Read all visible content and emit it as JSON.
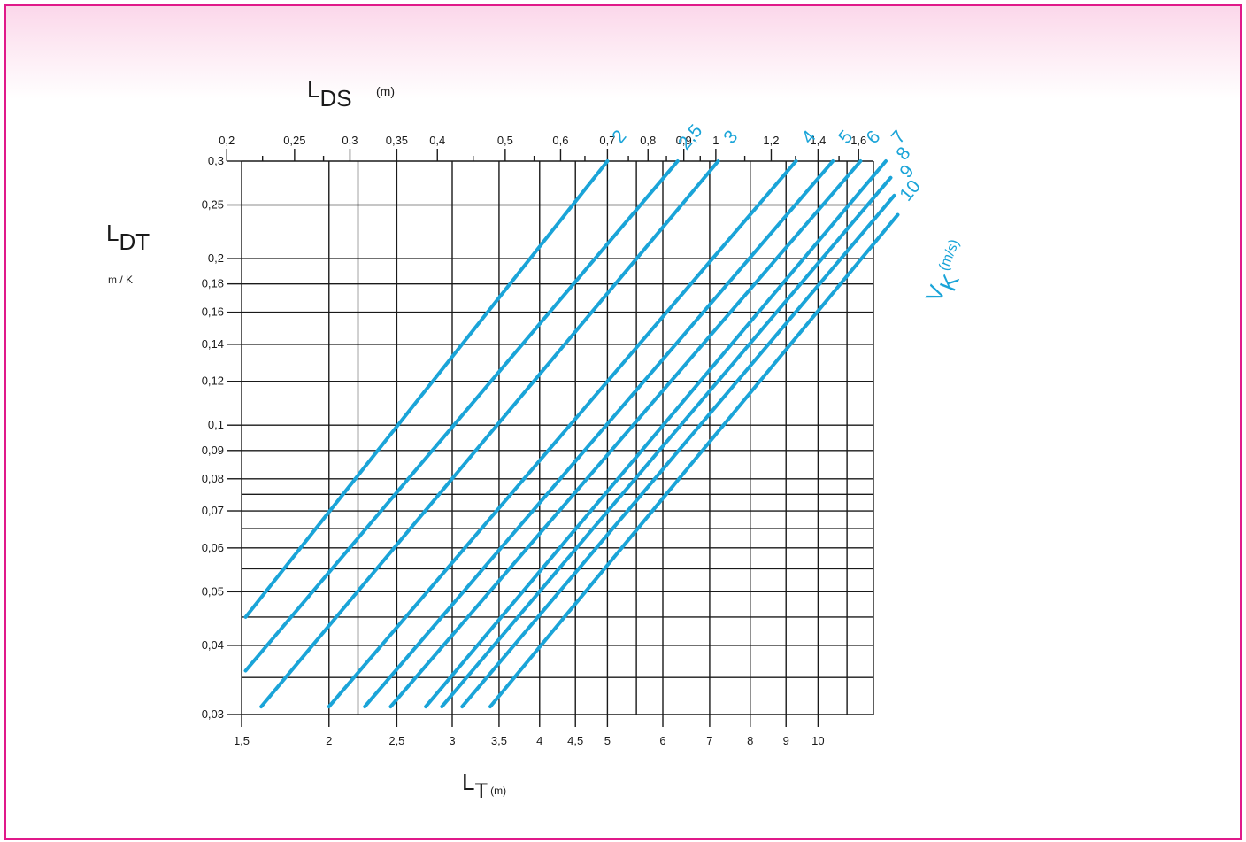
{
  "chart_data": {
    "type": "line",
    "scale": "log-log",
    "grid": true,
    "colors": {
      "frame": "#e0198a",
      "curves": "#1aa4d8",
      "grid": "#1a1a1a"
    },
    "x_axis": {
      "label_main": "L",
      "label_sub": "T",
      "label_unit": "(m)",
      "range": [
        1.5,
        12
      ],
      "tick_values": [
        1.5,
        2,
        2.5,
        3,
        3.5,
        4,
        4.5,
        5,
        6,
        7,
        8,
        9,
        10
      ],
      "tick_labels": [
        "1,5",
        "2",
        "2,5",
        "3",
        "3,5",
        "4",
        "4,5",
        "5",
        "6",
        "7",
        "8",
        "9",
        "10"
      ],
      "extra_gridlines": [
        2.2,
        5.5,
        11
      ]
    },
    "top_axis": {
      "label_main": "L",
      "label_sub": "DS",
      "label_unit": "(m)",
      "tick_values": [
        0.2,
        0.25,
        0.3,
        0.35,
        0.4,
        0.5,
        0.6,
        0.7,
        0.8,
        0.9,
        1,
        1.2,
        1.4,
        1.6
      ],
      "tick_labels": [
        "0,2",
        "0,25",
        "0,3",
        "0,35",
        "0,4",
        "0,5",
        "0,6",
        "0,7",
        "0,8",
        "0,9",
        "1",
        "1,2",
        "1,4",
        "1,6"
      ],
      "minor_values": [
        0.225,
        0.275,
        0.45,
        0.55,
        0.65,
        0.75,
        0.85,
        0.95,
        1.1,
        1.3,
        1.5,
        1.7
      ]
    },
    "y_axis": {
      "label_main": "L",
      "label_sub": "DT",
      "label_unit": "m / K",
      "range": [
        0.03,
        0.3
      ],
      "tick_values": [
        0.03,
        0.04,
        0.05,
        0.06,
        0.07,
        0.08,
        0.09,
        0.1,
        0.12,
        0.14,
        0.16,
        0.18,
        0.2,
        0.25,
        0.3
      ],
      "tick_labels": [
        "0,03",
        "0,04",
        "0,05",
        "0,06",
        "0,07",
        "0,08",
        "0,09",
        "0,1",
        "0,12",
        "0,14",
        "0,16",
        "0,18",
        "0,2",
        "0,25",
        "0,3"
      ],
      "extra_gridlines": [
        0.035,
        0.045,
        0.055,
        0.065,
        0.075
      ]
    },
    "series_label": {
      "main": "V",
      "sub": "K",
      "unit": "(m/s)"
    },
    "series": [
      {
        "name": "2",
        "points": [
          [
            1.52,
            0.045
          ],
          [
            5.0,
            0.3
          ]
        ]
      },
      {
        "name": "2,5",
        "points": [
          [
            1.52,
            0.036
          ],
          [
            6.3,
            0.3
          ]
        ]
      },
      {
        "name": "3",
        "points": [
          [
            1.6,
            0.031
          ],
          [
            7.2,
            0.3
          ]
        ]
      },
      {
        "name": "4",
        "points": [
          [
            2.0,
            0.031
          ],
          [
            9.3,
            0.3
          ]
        ]
      },
      {
        "name": "5",
        "points": [
          [
            2.25,
            0.031
          ],
          [
            10.5,
            0.3
          ]
        ]
      },
      {
        "name": "6",
        "points": [
          [
            2.45,
            0.031
          ],
          [
            11.5,
            0.3
          ]
        ]
      },
      {
        "name": "7",
        "points": [
          [
            2.75,
            0.031
          ],
          [
            12.5,
            0.3
          ]
        ]
      },
      {
        "name": "8",
        "points": [
          [
            2.9,
            0.031
          ],
          [
            12.7,
            0.28
          ]
        ]
      },
      {
        "name": "9",
        "points": [
          [
            3.1,
            0.031
          ],
          [
            12.85,
            0.26
          ]
        ]
      },
      {
        "name": "10",
        "points": [
          [
            3.4,
            0.031
          ],
          [
            13.0,
            0.24
          ]
        ]
      }
    ]
  }
}
